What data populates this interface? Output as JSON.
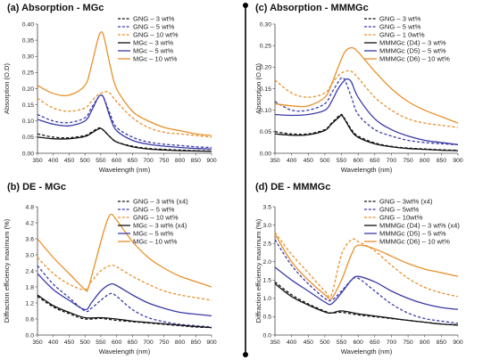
{
  "chart_data": [
    {
      "type": "line",
      "title": "(a) Absorption - MGc",
      "xlabel": "Wavelength (nm)",
      "ylabel": "Absorption (O.D)",
      "xlim": [
        350,
        900
      ],
      "ylim": [
        0,
        0.4
      ],
      "xticks": [
        "350",
        "400",
        "450",
        "500",
        "550",
        "600",
        "650",
        "700",
        "750",
        "800",
        "850",
        "900"
      ],
      "yticks": [
        "0.00",
        "0.05",
        "0.10",
        "0.15",
        "0.20",
        "0.25",
        "0.30",
        "0.35",
        "0.40"
      ],
      "legend_position": "top-right",
      "series": [
        {
          "name": "GNG – 3 wt%",
          "color": "#111111",
          "dash": true,
          "x": [
            350,
            400,
            450,
            500,
            520,
            540,
            550,
            560,
            580,
            600,
            650,
            700,
            750,
            800,
            850,
            900
          ],
          "y": [
            0.06,
            0.05,
            0.048,
            0.055,
            0.065,
            0.077,
            0.078,
            0.07,
            0.05,
            0.035,
            0.022,
            0.015,
            0.012,
            0.01,
            0.008,
            0.007
          ]
        },
        {
          "name": "GNG – 5 wt%",
          "color": "#3a3aa8",
          "dash": true,
          "x": [
            350,
            400,
            450,
            500,
            520,
            540,
            550,
            560,
            580,
            600,
            650,
            700,
            750,
            800,
            850,
            900
          ],
          "y": [
            0.12,
            0.1,
            0.095,
            0.11,
            0.14,
            0.17,
            0.18,
            0.17,
            0.12,
            0.08,
            0.05,
            0.035,
            0.028,
            0.024,
            0.02,
            0.018
          ]
        },
        {
          "name": "GNG – 10 wt%",
          "color": "#e8902a",
          "dash": true,
          "x": [
            350,
            400,
            450,
            500,
            520,
            540,
            560,
            570,
            580,
            600,
            650,
            700,
            750,
            800,
            850,
            900
          ],
          "y": [
            0.17,
            0.14,
            0.13,
            0.14,
            0.16,
            0.18,
            0.19,
            0.19,
            0.185,
            0.16,
            0.11,
            0.08,
            0.065,
            0.06,
            0.055,
            0.05
          ]
        },
        {
          "name": "MGc – 3 wt%",
          "color": "#111111",
          "dash": false,
          "x": [
            350,
            400,
            450,
            500,
            520,
            540,
            550,
            560,
            580,
            600,
            650,
            700,
            750,
            800,
            850,
            900
          ],
          "y": [
            0.05,
            0.045,
            0.045,
            0.052,
            0.062,
            0.074,
            0.077,
            0.07,
            0.05,
            0.035,
            0.02,
            0.013,
            0.01,
            0.008,
            0.007,
            0.006
          ]
        },
        {
          "name": "MGc – 5 wt%",
          "color": "#3a3aa8",
          "dash": false,
          "x": [
            350,
            400,
            450,
            500,
            520,
            540,
            550,
            560,
            580,
            600,
            650,
            700,
            750,
            800,
            850,
            900
          ],
          "y": [
            0.105,
            0.09,
            0.085,
            0.1,
            0.13,
            0.17,
            0.18,
            0.17,
            0.11,
            0.07,
            0.04,
            0.028,
            0.022,
            0.018,
            0.015,
            0.013
          ]
        },
        {
          "name": "MGc – 10 wt%",
          "color": "#e8902a",
          "dash": false,
          "x": [
            350,
            400,
            450,
            500,
            520,
            540,
            550,
            560,
            580,
            600,
            650,
            700,
            750,
            800,
            850,
            900
          ],
          "y": [
            0.21,
            0.185,
            0.18,
            0.21,
            0.27,
            0.35,
            0.375,
            0.36,
            0.27,
            0.2,
            0.13,
            0.1,
            0.08,
            0.07,
            0.06,
            0.055
          ]
        }
      ]
    },
    {
      "type": "line",
      "title": "(b) DE - MGc",
      "xlabel": "Wavelength (nm)",
      "ylabel": "Diffraction efficiency maximum (%)",
      "xlim": [
        350,
        900
      ],
      "ylim": [
        0,
        4.8
      ],
      "xticks": [
        "350",
        "400",
        "450",
        "500",
        "550",
        "600",
        "650",
        "700",
        "750",
        "800",
        "850",
        "900"
      ],
      "yticks": [
        "0.0",
        "0.6",
        "1.2",
        "1.8",
        "2.4",
        "3.0",
        "3.6",
        "4.2",
        "4.8"
      ],
      "legend_position": "top-right",
      "series": [
        {
          "name": "GNG – 3 wt% (x4)",
          "color": "#111111",
          "dash": true,
          "x": [
            350,
            400,
            450,
            500,
            550,
            600,
            650,
            700,
            750,
            800,
            850,
            900
          ],
          "y": [
            1.45,
            1.05,
            0.8,
            0.6,
            0.62,
            0.55,
            0.5,
            0.45,
            0.4,
            0.35,
            0.3,
            0.28
          ]
        },
        {
          "name": "GNG – 5 wt%",
          "color": "#3a3aa8",
          "dash": true,
          "x": [
            350,
            400,
            450,
            500,
            520,
            550,
            580,
            600,
            650,
            700,
            750,
            800,
            850,
            900
          ],
          "y": [
            2.6,
            1.9,
            1.4,
            0.9,
            1.0,
            1.3,
            1.55,
            1.45,
            0.95,
            0.65,
            0.5,
            0.4,
            0.35,
            0.3
          ]
        },
        {
          "name": "GNG – 10 wt%",
          "color": "#e8902a",
          "dash": true,
          "x": [
            350,
            400,
            450,
            500,
            520,
            550,
            580,
            600,
            650,
            700,
            750,
            800,
            850,
            900
          ],
          "y": [
            2.9,
            2.3,
            1.9,
            1.7,
            2.0,
            2.4,
            2.6,
            2.55,
            2.2,
            1.9,
            1.65,
            1.5,
            1.4,
            1.3
          ]
        },
        {
          "name": "MGc – 3 wt% (x4)",
          "color": "#111111",
          "dash": false,
          "x": [
            350,
            400,
            450,
            500,
            550,
            600,
            650,
            700,
            750,
            800,
            850,
            900
          ],
          "y": [
            1.5,
            1.1,
            0.85,
            0.65,
            0.65,
            0.6,
            0.52,
            0.47,
            0.42,
            0.37,
            0.32,
            0.28
          ]
        },
        {
          "name": "MGc – 5 wt%",
          "color": "#3a3aa8",
          "dash": false,
          "x": [
            350,
            400,
            450,
            500,
            520,
            550,
            580,
            600,
            650,
            700,
            750,
            800,
            850,
            900
          ],
          "y": [
            2.3,
            1.7,
            1.3,
            0.95,
            1.2,
            1.65,
            1.9,
            1.85,
            1.5,
            1.2,
            1.0,
            0.85,
            0.78,
            0.72
          ]
        },
        {
          "name": "MGc – 10 wt%",
          "color": "#e8902a",
          "dash": false,
          "x": [
            350,
            400,
            450,
            500,
            510,
            530,
            560,
            580,
            600,
            650,
            700,
            750,
            800,
            850,
            900
          ],
          "y": [
            3.6,
            2.9,
            2.3,
            1.7,
            1.75,
            2.6,
            3.9,
            4.5,
            4.3,
            3.5,
            2.9,
            2.5,
            2.2,
            2.0,
            1.8
          ]
        }
      ]
    },
    {
      "type": "line",
      "title": "(c) Absorption - MMMGc",
      "xlabel": "Wavelength (nm)",
      "ylabel": "Absorption (O.D)",
      "xlim": [
        350,
        900
      ],
      "ylim": [
        0,
        0.3
      ],
      "xticks": [
        "350",
        "400",
        "450",
        "500",
        "550",
        "600",
        "650",
        "700",
        "750",
        "800",
        "850",
        "900"
      ],
      "yticks": [
        "0.00",
        "0.05",
        "0.10",
        "0.15",
        "0.20",
        "0.25",
        "0.30"
      ],
      "legend_position": "top-right",
      "series": [
        {
          "name": "GNG – 3 wt%",
          "color": "#111111",
          "dash": true,
          "x": [
            350,
            400,
            450,
            500,
            520,
            540,
            550,
            560,
            580,
            600,
            650,
            700,
            750,
            800,
            850,
            900
          ],
          "y": [
            0.05,
            0.045,
            0.045,
            0.055,
            0.07,
            0.085,
            0.09,
            0.08,
            0.055,
            0.04,
            0.024,
            0.016,
            0.012,
            0.01,
            0.008,
            0.007
          ]
        },
        {
          "name": "GNG – 5 wt%",
          "color": "#3a3aa8",
          "dash": true,
          "x": [
            350,
            400,
            450,
            500,
            520,
            540,
            550,
            560,
            580,
            600,
            650,
            700,
            750,
            800,
            850,
            900
          ],
          "y": [
            0.12,
            0.1,
            0.1,
            0.115,
            0.14,
            0.165,
            0.175,
            0.17,
            0.13,
            0.09,
            0.055,
            0.04,
            0.03,
            0.025,
            0.022,
            0.02
          ]
        },
        {
          "name": "GNG – 1 0wt%",
          "color": "#e8902a",
          "dash": true,
          "x": [
            350,
            400,
            450,
            500,
            520,
            540,
            560,
            580,
            600,
            650,
            700,
            750,
            800,
            850,
            900
          ],
          "y": [
            0.17,
            0.14,
            0.13,
            0.14,
            0.16,
            0.18,
            0.19,
            0.19,
            0.175,
            0.13,
            0.1,
            0.08,
            0.07,
            0.065,
            0.06
          ]
        },
        {
          "name": "MMMGc (D4) – 3 wt%",
          "color": "#111111",
          "dash": false,
          "x": [
            350,
            400,
            450,
            500,
            520,
            540,
            550,
            560,
            580,
            600,
            650,
            700,
            750,
            800,
            850,
            900
          ],
          "y": [
            0.045,
            0.042,
            0.043,
            0.053,
            0.068,
            0.082,
            0.088,
            0.078,
            0.052,
            0.037,
            0.022,
            0.015,
            0.011,
            0.009,
            0.007,
            0.006
          ]
        },
        {
          "name": "MMMGc (D5) – 5 wt%",
          "color": "#3a3aa8",
          "dash": false,
          "x": [
            350,
            400,
            450,
            500,
            520,
            540,
            560,
            570,
            580,
            600,
            650,
            700,
            750,
            800,
            850,
            900
          ],
          "y": [
            0.09,
            0.088,
            0.09,
            0.1,
            0.12,
            0.15,
            0.17,
            0.172,
            0.165,
            0.13,
            0.08,
            0.055,
            0.04,
            0.03,
            0.025,
            0.02
          ]
        },
        {
          "name": "MMMGc (D6) – 10 wt%",
          "color": "#e8902a",
          "dash": false,
          "x": [
            350,
            400,
            450,
            500,
            520,
            540,
            560,
            580,
            600,
            650,
            700,
            750,
            800,
            850,
            900
          ],
          "y": [
            0.115,
            0.11,
            0.11,
            0.13,
            0.16,
            0.2,
            0.235,
            0.245,
            0.235,
            0.19,
            0.15,
            0.12,
            0.1,
            0.085,
            0.07
          ]
        }
      ]
    },
    {
      "type": "line",
      "title": "(d) DE - MMMGc",
      "xlabel": "Wavelength (nm)",
      "ylabel": "Diffraction efficiency maximum (%)",
      "xlim": [
        350,
        900
      ],
      "ylim": [
        0,
        3.5
      ],
      "xticks": [
        "350",
        "400",
        "450",
        "500",
        "550",
        "600",
        "650",
        "700",
        "750",
        "800",
        "850",
        "900"
      ],
      "yticks": [
        "0.0",
        "0.5",
        "1.0",
        "1.5",
        "2.0",
        "2.5",
        "3.0",
        "3.5"
      ],
      "legend_position": "top-right",
      "series": [
        {
          "name": "GNG – 3wt% (x4)",
          "color": "#111111",
          "dash": true,
          "x": [
            350,
            400,
            450,
            500,
            520,
            550,
            600,
            650,
            700,
            750,
            800,
            850,
            900
          ],
          "y": [
            1.45,
            1.1,
            0.85,
            0.65,
            0.6,
            0.62,
            0.55,
            0.5,
            0.45,
            0.4,
            0.35,
            0.3,
            0.28
          ]
        },
        {
          "name": "GNG – 5wt%",
          "color": "#3a3aa8",
          "dash": true,
          "x": [
            350,
            400,
            450,
            500,
            520,
            550,
            580,
            600,
            650,
            700,
            750,
            800,
            850,
            900
          ],
          "y": [
            2.6,
            1.9,
            1.4,
            1.0,
            0.95,
            1.2,
            1.5,
            1.55,
            1.2,
            0.85,
            0.6,
            0.45,
            0.38,
            0.32
          ]
        },
        {
          "name": "GNG – 10wt%",
          "color": "#e8902a",
          "dash": true,
          "x": [
            350,
            400,
            450,
            500,
            520,
            550,
            580,
            600,
            650,
            700,
            750,
            800,
            850,
            900
          ],
          "y": [
            2.8,
            2.2,
            1.7,
            1.2,
            1.1,
            2.2,
            2.6,
            2.55,
            2.3,
            1.9,
            1.55,
            1.3,
            1.15,
            1.05
          ]
        },
        {
          "name": "MMMGc (D4) – 3 wt% (x4)",
          "color": "#111111",
          "dash": false,
          "x": [
            350,
            400,
            450,
            500,
            520,
            550,
            600,
            650,
            700,
            750,
            800,
            850,
            900
          ],
          "y": [
            1.4,
            1.05,
            0.82,
            0.63,
            0.6,
            0.66,
            0.58,
            0.52,
            0.46,
            0.4,
            0.35,
            0.3,
            0.27
          ]
        },
        {
          "name": "MMMGc (D5) – 5 wt%",
          "color": "#3a3aa8",
          "dash": false,
          "x": [
            350,
            400,
            450,
            500,
            520,
            550,
            580,
            600,
            650,
            700,
            750,
            800,
            850,
            900
          ],
          "y": [
            1.85,
            1.5,
            1.2,
            0.9,
            0.85,
            1.15,
            1.5,
            1.6,
            1.45,
            1.2,
            1.0,
            0.85,
            0.75,
            0.7
          ]
        },
        {
          "name": "MMMGc (D6) – 10 wt%",
          "color": "#e8902a",
          "dash": false,
          "x": [
            350,
            400,
            450,
            500,
            520,
            550,
            580,
            600,
            650,
            700,
            750,
            800,
            850,
            900
          ],
          "y": [
            2.75,
            2.0,
            1.5,
            1.1,
            1.0,
            1.5,
            2.2,
            2.45,
            2.35,
            2.15,
            1.95,
            1.8,
            1.7,
            1.6
          ]
        }
      ]
    }
  ]
}
